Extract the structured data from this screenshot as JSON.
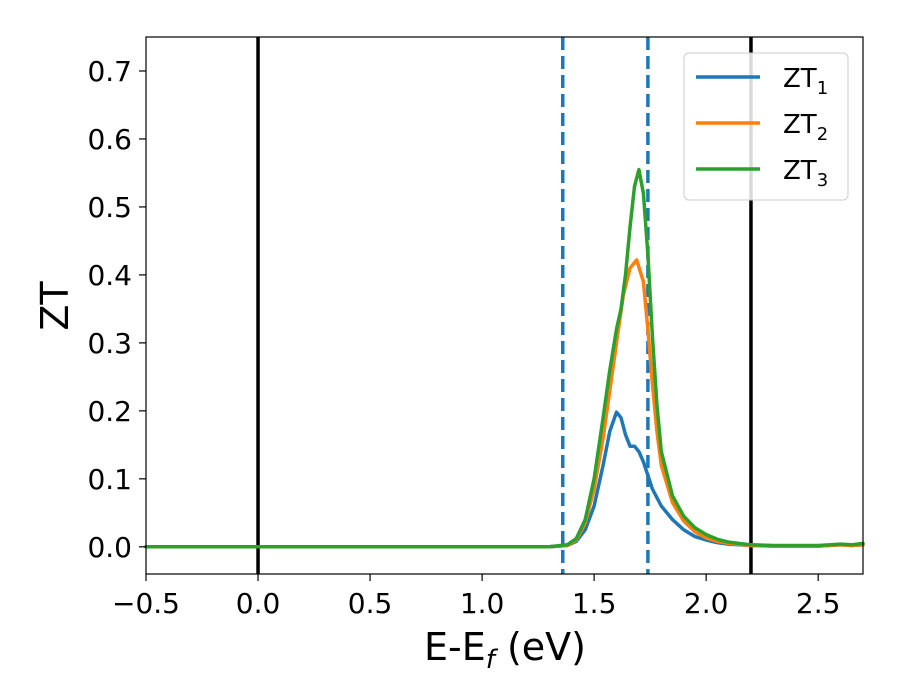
{
  "chart_data": {
    "type": "line",
    "xlabel": "E-E",
    "xlabel_sub": "f",
    "xlabel_unit": " (eV)",
    "ylabel": "ZT",
    "xlim": [
      -0.5,
      2.7
    ],
    "ylim": [
      -0.04,
      0.75
    ],
    "xticks": [
      -0.5,
      0.0,
      0.5,
      1.0,
      1.5,
      2.0,
      2.5
    ],
    "xtick_labels": [
      "−0.5",
      "0.0",
      "0.5",
      "1.0",
      "1.5",
      "2.0",
      "2.5"
    ],
    "yticks": [
      0.0,
      0.1,
      0.2,
      0.3,
      0.4,
      0.5,
      0.6,
      0.7
    ],
    "ytick_labels": [
      "0.0",
      "0.1",
      "0.2",
      "0.3",
      "0.4",
      "0.5",
      "0.6",
      "0.7"
    ],
    "grid": false,
    "legend_position": "top-right",
    "vlines": [
      {
        "x": 0.0,
        "style": "solid",
        "color": "#000000"
      },
      {
        "x": 2.2,
        "style": "solid",
        "color": "#000000"
      },
      {
        "x": 1.36,
        "style": "dashed",
        "color": "#1f77b4"
      },
      {
        "x": 1.74,
        "style": "dashed",
        "color": "#1f77b4"
      }
    ],
    "series": [
      {
        "name": "ZT",
        "name_sub": "1",
        "color": "#1f77b4",
        "x": [
          -0.5,
          1.3,
          1.38,
          1.42,
          1.46,
          1.5,
          1.54,
          1.57,
          1.6,
          1.62,
          1.64,
          1.66,
          1.68,
          1.7,
          1.72,
          1.74,
          1.76,
          1.8,
          1.85,
          1.9,
          1.95,
          2.0,
          2.05,
          2.1,
          2.2,
          2.3,
          2.5,
          2.6,
          2.65,
          2.7
        ],
        "y": [
          0,
          0,
          0.002,
          0.008,
          0.025,
          0.06,
          0.12,
          0.17,
          0.198,
          0.19,
          0.165,
          0.148,
          0.148,
          0.14,
          0.125,
          0.105,
          0.085,
          0.06,
          0.04,
          0.025,
          0.015,
          0.01,
          0.006,
          0.004,
          0.002,
          0.001,
          0.001,
          0.003,
          0.002,
          0.003
        ]
      },
      {
        "name": "ZT",
        "name_sub": "2",
        "color": "#ff7f0e",
        "x": [
          -0.5,
          1.3,
          1.38,
          1.42,
          1.46,
          1.5,
          1.54,
          1.57,
          1.6,
          1.63,
          1.66,
          1.69,
          1.72,
          1.74,
          1.76,
          1.78,
          1.8,
          1.85,
          1.9,
          1.95,
          2.0,
          2.05,
          2.1,
          2.2,
          2.3,
          2.5,
          2.6,
          2.65,
          2.7
        ],
        "y": [
          0,
          0,
          0.002,
          0.01,
          0.035,
          0.085,
          0.16,
          0.23,
          0.3,
          0.37,
          0.41,
          0.422,
          0.39,
          0.32,
          0.24,
          0.17,
          0.12,
          0.065,
          0.038,
          0.022,
          0.013,
          0.008,
          0.005,
          0.002,
          0.001,
          0.001,
          0.003,
          0.002,
          0.003
        ]
      },
      {
        "name": "ZT",
        "name_sub": "3",
        "color": "#2ca02c",
        "x": [
          -0.5,
          1.3,
          1.38,
          1.42,
          1.46,
          1.5,
          1.54,
          1.57,
          1.6,
          1.62,
          1.64,
          1.66,
          1.68,
          1.7,
          1.72,
          1.74,
          1.76,
          1.78,
          1.8,
          1.85,
          1.9,
          1.95,
          2.0,
          2.05,
          2.1,
          2.2,
          2.3,
          2.5,
          2.6,
          2.65,
          2.7
        ],
        "y": [
          0,
          0,
          0.003,
          0.012,
          0.04,
          0.1,
          0.19,
          0.26,
          0.32,
          0.35,
          0.4,
          0.47,
          0.53,
          0.555,
          0.52,
          0.43,
          0.31,
          0.21,
          0.14,
          0.075,
          0.045,
          0.028,
          0.018,
          0.011,
          0.007,
          0.003,
          0.002,
          0.002,
          0.004,
          0.003,
          0.005
        ]
      }
    ]
  }
}
